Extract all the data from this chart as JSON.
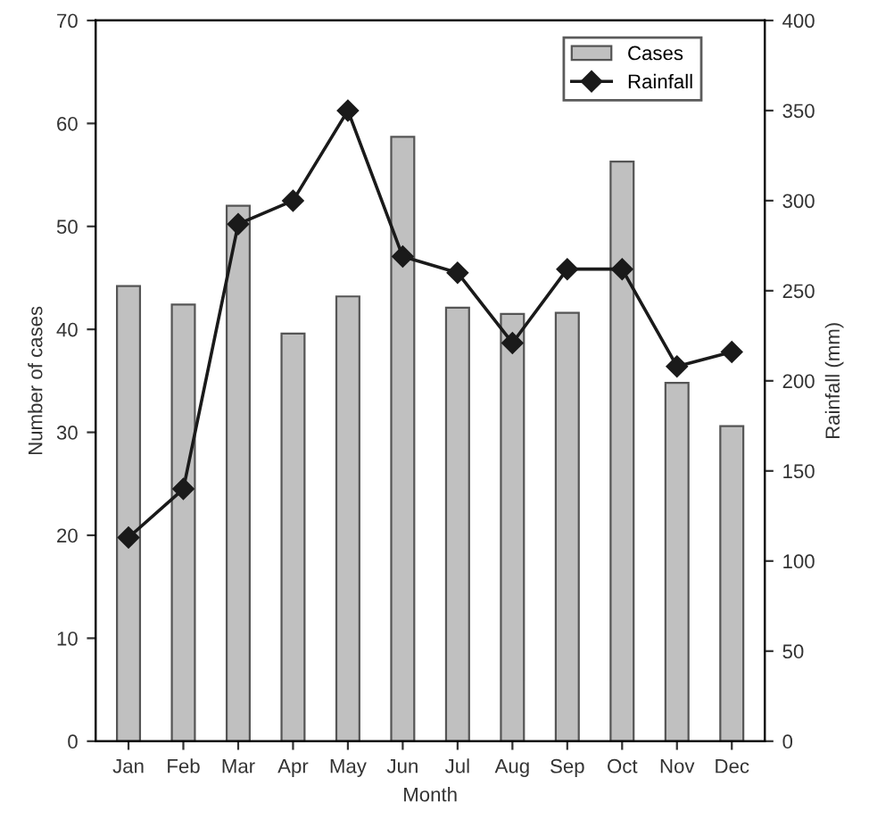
{
  "chart_data": {
    "type": "bar",
    "categories": [
      "Jan",
      "Feb",
      "Mar",
      "Apr",
      "May",
      "Jun",
      "Jul",
      "Aug",
      "Sep",
      "Oct",
      "Nov",
      "Dec"
    ],
    "xlabel": "Month",
    "ylabel": "Number of cases",
    "y2label": "Rainfall (mm)",
    "series": [
      {
        "name": "Cases",
        "color": "#c0c0c0",
        "values": [
          44.2,
          42.4,
          52,
          39.6,
          43.2,
          58.7,
          42.1,
          41.5,
          41.6,
          56.3,
          34.8,
          30.6
        ]
      },
      {
        "name": "Rainfall",
        "type": "line",
        "axis": "y2",
        "color": "#1a1a1a",
        "marker": "diamond",
        "values": [
          113,
          140,
          287,
          300,
          350,
          269,
          260,
          221,
          262,
          262,
          208,
          216
        ]
      }
    ],
    "ylim": [
      0,
      70
    ],
    "yticks": [
      0,
      10,
      20,
      30,
      40,
      50,
      60,
      70
    ],
    "y2lim": [
      0,
      400
    ],
    "y2ticks": [
      0,
      50,
      100,
      150,
      200,
      250,
      300,
      350,
      400
    ],
    "legend": "top right",
    "grid": false
  }
}
